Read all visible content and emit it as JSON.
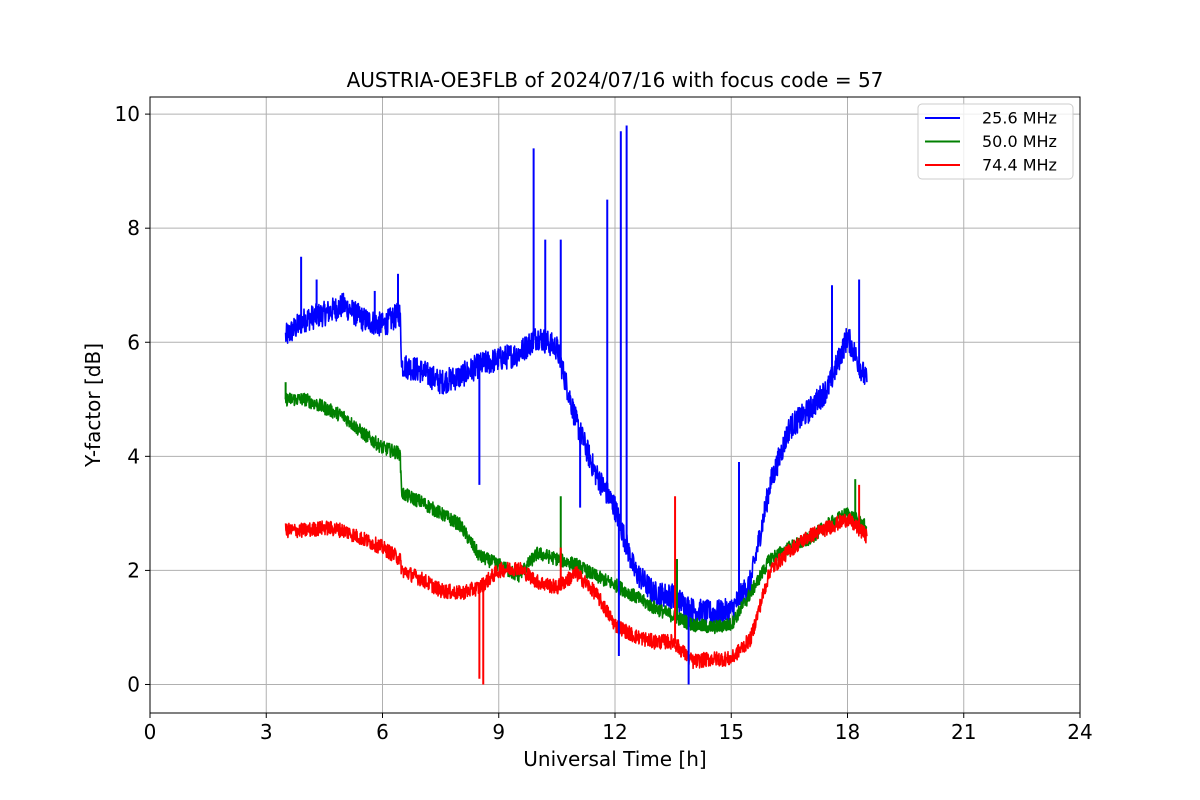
{
  "chart_data": {
    "type": "line",
    "title": "AUSTRIA-OE3FLB of 2024/07/16 with focus code = 57",
    "xlabel": "Universal Time [h]",
    "ylabel": "Y-factor [dB]",
    "xlim": [
      0,
      24
    ],
    "ylim": [
      -0.5,
      10.3
    ],
    "x_ticks": [
      0,
      3,
      6,
      9,
      12,
      15,
      18,
      21,
      24
    ],
    "x_tick_labels": [
      "0",
      "3",
      "6",
      "9",
      "12",
      "15",
      "18",
      "21",
      "24"
    ],
    "y_ticks": [
      0,
      2,
      4,
      6,
      8,
      10
    ],
    "y_tick_labels": [
      "0",
      "2",
      "4",
      "6",
      "8",
      "10"
    ],
    "grid": true,
    "legend_position": "top-right",
    "x": [
      3.5,
      4.0,
      4.5,
      5.0,
      5.5,
      6.0,
      6.45,
      6.5,
      7.0,
      7.5,
      8.0,
      8.5,
      9.0,
      9.5,
      10.0,
      10.5,
      11.0,
      11.5,
      12.0,
      12.5,
      13.0,
      13.5,
      14.0,
      14.5,
      15.0,
      15.5,
      16.0,
      16.5,
      17.0,
      17.5,
      18.0,
      18.5
    ],
    "series": [
      {
        "name": "25.6 MHz",
        "color": "#0000ff",
        "values": [
          6.1,
          6.4,
          6.5,
          6.65,
          6.4,
          6.3,
          6.5,
          5.6,
          5.5,
          5.3,
          5.4,
          5.6,
          5.7,
          5.8,
          6.1,
          5.9,
          4.6,
          3.7,
          3.1,
          2.0,
          1.6,
          1.55,
          1.3,
          1.25,
          1.3,
          1.8,
          3.5,
          4.5,
          4.8,
          5.2,
          6.1,
          5.3
        ]
      },
      {
        "name": "50.0 MHz",
        "color": "#008000",
        "values": [
          5.0,
          5.0,
          4.85,
          4.7,
          4.4,
          4.15,
          4.05,
          3.35,
          3.2,
          3.0,
          2.8,
          2.25,
          2.1,
          1.9,
          2.3,
          2.2,
          2.1,
          1.9,
          1.75,
          1.55,
          1.35,
          1.2,
          1.05,
          1.0,
          1.05,
          1.6,
          2.2,
          2.4,
          2.55,
          2.8,
          3.0,
          2.75
        ]
      },
      {
        "name": "74.4 MHz",
        "color": "#ff0000",
        "values": [
          2.7,
          2.7,
          2.75,
          2.7,
          2.55,
          2.4,
          2.2,
          2.0,
          1.85,
          1.65,
          1.6,
          1.7,
          2.0,
          2.05,
          1.8,
          1.7,
          1.95,
          1.6,
          1.05,
          0.85,
          0.75,
          0.75,
          0.4,
          0.45,
          0.45,
          0.8,
          2.0,
          2.35,
          2.6,
          2.75,
          2.9,
          2.6
        ]
      }
    ],
    "spikes": [
      {
        "series": 0,
        "x": 3.9,
        "y": 7.5
      },
      {
        "series": 0,
        "x": 4.3,
        "y": 7.1
      },
      {
        "series": 0,
        "x": 5.8,
        "y": 6.9
      },
      {
        "series": 0,
        "x": 6.4,
        "y": 7.2
      },
      {
        "series": 0,
        "x": 8.5,
        "y": 3.5
      },
      {
        "series": 0,
        "x": 9.9,
        "y": 9.4
      },
      {
        "series": 0,
        "x": 10.2,
        "y": 7.8
      },
      {
        "series": 0,
        "x": 10.6,
        "y": 7.8
      },
      {
        "series": 0,
        "x": 11.1,
        "y": 3.1
      },
      {
        "series": 0,
        "x": 11.8,
        "y": 8.5
      },
      {
        "series": 0,
        "x": 12.15,
        "y": 9.7
      },
      {
        "series": 0,
        "x": 12.3,
        "y": 9.8
      },
      {
        "series": 0,
        "x": 12.1,
        "y": 0.5
      },
      {
        "series": 0,
        "x": 13.9,
        "y": 0.0
      },
      {
        "series": 0,
        "x": 15.2,
        "y": 3.9
      },
      {
        "series": 0,
        "x": 17.6,
        "y": 7.0
      },
      {
        "series": 0,
        "x": 18.3,
        "y": 7.1
      },
      {
        "series": 1,
        "x": 3.5,
        "y": 5.3
      },
      {
        "series": 1,
        "x": 10.6,
        "y": 3.3
      },
      {
        "series": 1,
        "x": 13.6,
        "y": 2.2
      },
      {
        "series": 1,
        "x": 18.2,
        "y": 3.6
      },
      {
        "series": 2,
        "x": 8.5,
        "y": 0.1
      },
      {
        "series": 2,
        "x": 8.6,
        "y": 0.0
      },
      {
        "series": 2,
        "x": 10.6,
        "y": 2.4
      },
      {
        "series": 2,
        "x": 13.55,
        "y": 3.3
      },
      {
        "series": 2,
        "x": 18.3,
        "y": 3.5
      }
    ]
  }
}
